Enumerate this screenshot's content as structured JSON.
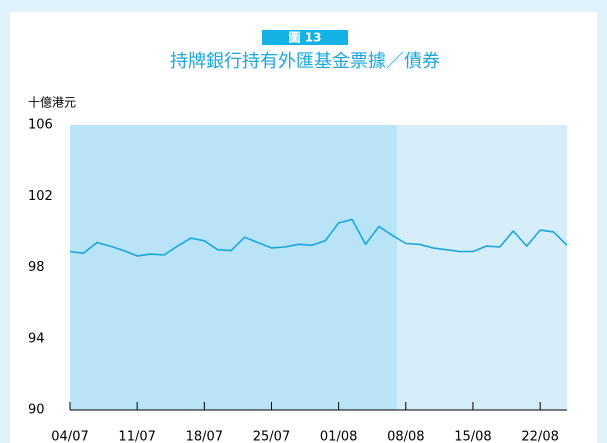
{
  "chart_data": {
    "type": "line",
    "badge": "圖 13",
    "title": "持牌銀行持有外匯基金票據／債券",
    "y_label": "十億港元",
    "categories": [
      "04/07",
      null,
      null,
      null,
      null,
      "11/07",
      null,
      null,
      null,
      null,
      "18/07",
      null,
      null,
      null,
      null,
      "25/07",
      null,
      null,
      null,
      null,
      "01/08",
      null,
      null,
      null,
      null,
      "08/08",
      null,
      null,
      null,
      null,
      "15/08",
      null,
      null,
      null,
      null,
      "22/08",
      null,
      null
    ],
    "series": [
      {
        "name": "持牌銀行持有外匯基金票據／債券",
        "color": "#1aa7df",
        "values": [
          98.9,
          98.8,
          99.4,
          99.2,
          98.95,
          98.65,
          98.75,
          98.7,
          99.2,
          99.65,
          99.5,
          99.0,
          98.95,
          99.7,
          99.4,
          99.1,
          99.15,
          99.3,
          99.25,
          99.5,
          100.5,
          100.7,
          99.3,
          100.3,
          99.8,
          99.35,
          99.3,
          99.1,
          99.0,
          98.9,
          98.9,
          99.2,
          99.15,
          100.05,
          99.2,
          100.1,
          100.0,
          99.25
        ]
      }
    ],
    "ylim": [
      90,
      106
    ],
    "yticks": [
      90,
      94,
      98,
      102,
      106
    ],
    "grid": false
  }
}
